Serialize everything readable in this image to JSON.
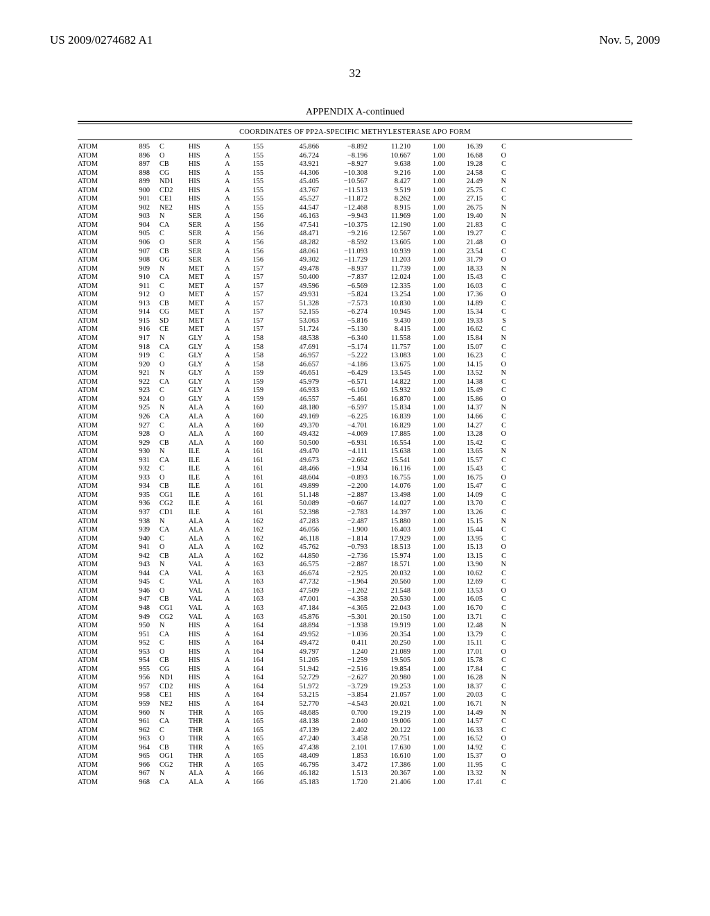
{
  "header": {
    "pub_number": "US 2009/0274682 A1",
    "pub_date": "Nov. 5, 2009"
  },
  "page_number": "32",
  "appendix_title": "APPENDIX A-continued",
  "table_caption": "COORDINATES OF PP2A-SPECIFIC METHYLESTERASE APO FORM",
  "rows": [
    [
      "ATOM",
      "895",
      "C",
      "HIS",
      "A",
      "155",
      "45.866",
      "−8.892",
      "11.210",
      "1.00",
      "16.39",
      "C"
    ],
    [
      "ATOM",
      "896",
      "O",
      "HIS",
      "A",
      "155",
      "46.724",
      "−8.196",
      "10.667",
      "1.00",
      "16.68",
      "O"
    ],
    [
      "ATOM",
      "897",
      "CB",
      "HIS",
      "A",
      "155",
      "43.921",
      "−8.927",
      "9.638",
      "1.00",
      "19.28",
      "C"
    ],
    [
      "ATOM",
      "898",
      "CG",
      "HIS",
      "A",
      "155",
      "44.306",
      "−10.308",
      "9.216",
      "1.00",
      "24.58",
      "C"
    ],
    [
      "ATOM",
      "899",
      "ND1",
      "HIS",
      "A",
      "155",
      "45.405",
      "−10.567",
      "8.427",
      "1.00",
      "24.49",
      "N"
    ],
    [
      "ATOM",
      "900",
      "CD2",
      "HIS",
      "A",
      "155",
      "43.767",
      "−11.513",
      "9.519",
      "1.00",
      "25.75",
      "C"
    ],
    [
      "ATOM",
      "901",
      "CE1",
      "HIS",
      "A",
      "155",
      "45.527",
      "−11.872",
      "8.262",
      "1.00",
      "27.15",
      "C"
    ],
    [
      "ATOM",
      "902",
      "NE2",
      "HIS",
      "A",
      "155",
      "44.547",
      "−12.468",
      "8.915",
      "1.00",
      "26.75",
      "N"
    ],
    [
      "ATOM",
      "903",
      "N",
      "SER",
      "A",
      "156",
      "46.163",
      "−9.943",
      "11.969",
      "1.00",
      "19.40",
      "N"
    ],
    [
      "ATOM",
      "904",
      "CA",
      "SER",
      "A",
      "156",
      "47.541",
      "−10.375",
      "12.190",
      "1.00",
      "21.83",
      "C"
    ],
    [
      "ATOM",
      "905",
      "C",
      "SER",
      "A",
      "156",
      "48.471",
      "−9.216",
      "12.567",
      "1.00",
      "19.27",
      "C"
    ],
    [
      "ATOM",
      "906",
      "O",
      "SER",
      "A",
      "156",
      "48.282",
      "−8.592",
      "13.605",
      "1.00",
      "21.48",
      "O"
    ],
    [
      "ATOM",
      "907",
      "CB",
      "SER",
      "A",
      "156",
      "48.061",
      "−11.093",
      "10.939",
      "1.00",
      "23.54",
      "C"
    ],
    [
      "ATOM",
      "908",
      "OG",
      "SER",
      "A",
      "156",
      "49.302",
      "−11.729",
      "11.203",
      "1.00",
      "31.79",
      "O"
    ],
    [
      "ATOM",
      "909",
      "N",
      "MET",
      "A",
      "157",
      "49.478",
      "−8.937",
      "11.739",
      "1.00",
      "18.33",
      "N"
    ],
    [
      "ATOM",
      "910",
      "CA",
      "MET",
      "A",
      "157",
      "50.400",
      "−7.837",
      "12.024",
      "1.00",
      "15.43",
      "C"
    ],
    [
      "ATOM",
      "911",
      "C",
      "MET",
      "A",
      "157",
      "49.596",
      "−6.569",
      "12.335",
      "1.00",
      "16.03",
      "C"
    ],
    [
      "ATOM",
      "912",
      "O",
      "MET",
      "A",
      "157",
      "49.931",
      "−5.824",
      "13.254",
      "1.00",
      "17.36",
      "O"
    ],
    [
      "ATOM",
      "913",
      "CB",
      "MET",
      "A",
      "157",
      "51.328",
      "−7.573",
      "10.830",
      "1.00",
      "14.89",
      "C"
    ],
    [
      "ATOM",
      "914",
      "CG",
      "MET",
      "A",
      "157",
      "52.155",
      "−6.274",
      "10.945",
      "1.00",
      "15.34",
      "C"
    ],
    [
      "ATOM",
      "915",
      "SD",
      "MET",
      "A",
      "157",
      "53.063",
      "−5.816",
      "9.430",
      "1.00",
      "19.33",
      "S"
    ],
    [
      "ATOM",
      "916",
      "CE",
      "MET",
      "A",
      "157",
      "51.724",
      "−5.130",
      "8.415",
      "1.00",
      "16.62",
      "C"
    ],
    [
      "ATOM",
      "917",
      "N",
      "GLY",
      "A",
      "158",
      "48.538",
      "−6.340",
      "11.558",
      "1.00",
      "15.84",
      "N"
    ],
    [
      "ATOM",
      "918",
      "CA",
      "GLY",
      "A",
      "158",
      "47.691",
      "−5.174",
      "11.757",
      "1.00",
      "15.07",
      "C"
    ],
    [
      "ATOM",
      "919",
      "C",
      "GLY",
      "A",
      "158",
      "46.957",
      "−5.222",
      "13.083",
      "1.00",
      "16.23",
      "C"
    ],
    [
      "ATOM",
      "920",
      "O",
      "GLY",
      "A",
      "158",
      "46.657",
      "−4.186",
      "13.675",
      "1.00",
      "14.15",
      "O"
    ],
    [
      "ATOM",
      "921",
      "N",
      "GLY",
      "A",
      "159",
      "46.651",
      "−6.429",
      "13.545",
      "1.00",
      "13.52",
      "N"
    ],
    [
      "ATOM",
      "922",
      "CA",
      "GLY",
      "A",
      "159",
      "45.979",
      "−6.571",
      "14.822",
      "1.00",
      "14.38",
      "C"
    ],
    [
      "ATOM",
      "923",
      "C",
      "GLY",
      "A",
      "159",
      "46.933",
      "−6.160",
      "15.932",
      "1.00",
      "15.49",
      "C"
    ],
    [
      "ATOM",
      "924",
      "O",
      "GLY",
      "A",
      "159",
      "46.557",
      "−5.461",
      "16.870",
      "1.00",
      "15.86",
      "O"
    ],
    [
      "ATOM",
      "925",
      "N",
      "ALA",
      "A",
      "160",
      "48.180",
      "−6.597",
      "15.834",
      "1.00",
      "14.37",
      "N"
    ],
    [
      "ATOM",
      "926",
      "CA",
      "ALA",
      "A",
      "160",
      "49.169",
      "−6.225",
      "16.839",
      "1.00",
      "14.66",
      "C"
    ],
    [
      "ATOM",
      "927",
      "C",
      "ALA",
      "A",
      "160",
      "49.370",
      "−4.701",
      "16.829",
      "1.00",
      "14.27",
      "C"
    ],
    [
      "ATOM",
      "928",
      "O",
      "ALA",
      "A",
      "160",
      "49.432",
      "−4.069",
      "17.885",
      "1.00",
      "13.28",
      "O"
    ],
    [
      "ATOM",
      "929",
      "CB",
      "ALA",
      "A",
      "160",
      "50.500",
      "−6.931",
      "16.554",
      "1.00",
      "15.42",
      "C"
    ],
    [
      "ATOM",
      "930",
      "N",
      "ILE",
      "A",
      "161",
      "49.470",
      "−4.111",
      "15.638",
      "1.00",
      "13.65",
      "N"
    ],
    [
      "ATOM",
      "931",
      "CA",
      "ILE",
      "A",
      "161",
      "49.673",
      "−2.662",
      "15.541",
      "1.00",
      "15.57",
      "C"
    ],
    [
      "ATOM",
      "932",
      "C",
      "ILE",
      "A",
      "161",
      "48.466",
      "−1.934",
      "16.116",
      "1.00",
      "15.43",
      "C"
    ],
    [
      "ATOM",
      "933",
      "O",
      "ILE",
      "A",
      "161",
      "48.604",
      "−0.893",
      "16.755",
      "1.00",
      "16.75",
      "O"
    ],
    [
      "ATOM",
      "934",
      "CB",
      "ILE",
      "A",
      "161",
      "49.899",
      "−2.200",
      "14.076",
      "1.00",
      "15.47",
      "C"
    ],
    [
      "ATOM",
      "935",
      "CG1",
      "ILE",
      "A",
      "161",
      "51.148",
      "−2.887",
      "13.498",
      "1.00",
      "14.09",
      "C"
    ],
    [
      "ATOM",
      "936",
      "CG2",
      "ILE",
      "A",
      "161",
      "50.089",
      "−0.667",
      "14.027",
      "1.00",
      "13.70",
      "C"
    ],
    [
      "ATOM",
      "937",
      "CD1",
      "ILE",
      "A",
      "161",
      "52.398",
      "−2.783",
      "14.397",
      "1.00",
      "13.26",
      "C"
    ],
    [
      "ATOM",
      "938",
      "N",
      "ALA",
      "A",
      "162",
      "47.283",
      "−2.487",
      "15.880",
      "1.00",
      "15.15",
      "N"
    ],
    [
      "ATOM",
      "939",
      "CA",
      "ALA",
      "A",
      "162",
      "46.056",
      "−1.900",
      "16.403",
      "1.00",
      "15.44",
      "C"
    ],
    [
      "ATOM",
      "940",
      "C",
      "ALA",
      "A",
      "162",
      "46.118",
      "−1.814",
      "17.929",
      "1.00",
      "13.95",
      "C"
    ],
    [
      "ATOM",
      "941",
      "O",
      "ALA",
      "A",
      "162",
      "45.762",
      "−0.793",
      "18.513",
      "1.00",
      "15.13",
      "O"
    ],
    [
      "ATOM",
      "942",
      "CB",
      "ALA",
      "A",
      "162",
      "44.850",
      "−2.736",
      "15.974",
      "1.00",
      "13.15",
      "C"
    ],
    [
      "ATOM",
      "943",
      "N",
      "VAL",
      "A",
      "163",
      "46.575",
      "−2.887",
      "18.571",
      "1.00",
      "13.90",
      "N"
    ],
    [
      "ATOM",
      "944",
      "CA",
      "VAL",
      "A",
      "163",
      "46.674",
      "−2.925",
      "20.032",
      "1.00",
      "10.62",
      "C"
    ],
    [
      "ATOM",
      "945",
      "C",
      "VAL",
      "A",
      "163",
      "47.732",
      "−1.964",
      "20.560",
      "1.00",
      "12.69",
      "C"
    ],
    [
      "ATOM",
      "946",
      "O",
      "VAL",
      "A",
      "163",
      "47.509",
      "−1.262",
      "21.548",
      "1.00",
      "13.53",
      "O"
    ],
    [
      "ATOM",
      "947",
      "CB",
      "VAL",
      "A",
      "163",
      "47.001",
      "−4.358",
      "20.530",
      "1.00",
      "16.05",
      "C"
    ],
    [
      "ATOM",
      "948",
      "CG1",
      "VAL",
      "A",
      "163",
      "47.184",
      "−4.365",
      "22.043",
      "1.00",
      "16.70",
      "C"
    ],
    [
      "ATOM",
      "949",
      "CG2",
      "VAL",
      "A",
      "163",
      "45.876",
      "−5.301",
      "20.150",
      "1.00",
      "13.71",
      "C"
    ],
    [
      "ATOM",
      "950",
      "N",
      "HIS",
      "A",
      "164",
      "48.894",
      "−1.938",
      "19.919",
      "1.00",
      "12.48",
      "N"
    ],
    [
      "ATOM",
      "951",
      "CA",
      "HIS",
      "A",
      "164",
      "49.952",
      "−1.036",
      "20.354",
      "1.00",
      "13.79",
      "C"
    ],
    [
      "ATOM",
      "952",
      "C",
      "HIS",
      "A",
      "164",
      "49.472",
      "0.411",
      "20.250",
      "1.00",
      "15.11",
      "C"
    ],
    [
      "ATOM",
      "953",
      "O",
      "HIS",
      "A",
      "164",
      "49.797",
      "1.240",
      "21.089",
      "1.00",
      "17.01",
      "O"
    ],
    [
      "ATOM",
      "954",
      "CB",
      "HIS",
      "A",
      "164",
      "51.205",
      "−1.259",
      "19.505",
      "1.00",
      "15.78",
      "C"
    ],
    [
      "ATOM",
      "955",
      "CG",
      "HIS",
      "A",
      "164",
      "51.942",
      "−2.516",
      "19.854",
      "1.00",
      "17.84",
      "C"
    ],
    [
      "ATOM",
      "956",
      "ND1",
      "HIS",
      "A",
      "164",
      "52.729",
      "−2.627",
      "20.980",
      "1.00",
      "16.28",
      "N"
    ],
    [
      "ATOM",
      "957",
      "CD2",
      "HIS",
      "A",
      "164",
      "51.972",
      "−3.729",
      "19.253",
      "1.00",
      "18.37",
      "C"
    ],
    [
      "ATOM",
      "958",
      "CE1",
      "HIS",
      "A",
      "164",
      "53.215",
      "−3.854",
      "21.057",
      "1.00",
      "20.03",
      "C"
    ],
    [
      "ATOM",
      "959",
      "NE2",
      "HIS",
      "A",
      "164",
      "52.770",
      "−4.543",
      "20.021",
      "1.00",
      "16.71",
      "N"
    ],
    [
      "ATOM",
      "960",
      "N",
      "THR",
      "A",
      "165",
      "48.685",
      "0.700",
      "19.219",
      "1.00",
      "14.49",
      "N"
    ],
    [
      "ATOM",
      "961",
      "CA",
      "THR",
      "A",
      "165",
      "48.138",
      "2.040",
      "19.006",
      "1.00",
      "14.57",
      "C"
    ],
    [
      "ATOM",
      "962",
      "C",
      "THR",
      "A",
      "165",
      "47.139",
      "2.402",
      "20.122",
      "1.00",
      "16.33",
      "C"
    ],
    [
      "ATOM",
      "963",
      "O",
      "THR",
      "A",
      "165",
      "47.240",
      "3.458",
      "20.751",
      "1.00",
      "16.52",
      "O"
    ],
    [
      "ATOM",
      "964",
      "CB",
      "THR",
      "A",
      "165",
      "47.438",
      "2.101",
      "17.630",
      "1.00",
      "14.92",
      "C"
    ],
    [
      "ATOM",
      "965",
      "OG1",
      "THR",
      "A",
      "165",
      "48.409",
      "1.853",
      "16.610",
      "1.00",
      "15.37",
      "O"
    ],
    [
      "ATOM",
      "966",
      "CG2",
      "THR",
      "A",
      "165",
      "46.795",
      "3.472",
      "17.386",
      "1.00",
      "11.95",
      "C"
    ],
    [
      "ATOM",
      "967",
      "N",
      "ALA",
      "A",
      "166",
      "46.182",
      "1.513",
      "20.367",
      "1.00",
      "13.32",
      "N"
    ],
    [
      "ATOM",
      "968",
      "CA",
      "ALA",
      "A",
      "166",
      "45.183",
      "1.720",
      "21.406",
      "1.00",
      "17.41",
      "C"
    ]
  ]
}
